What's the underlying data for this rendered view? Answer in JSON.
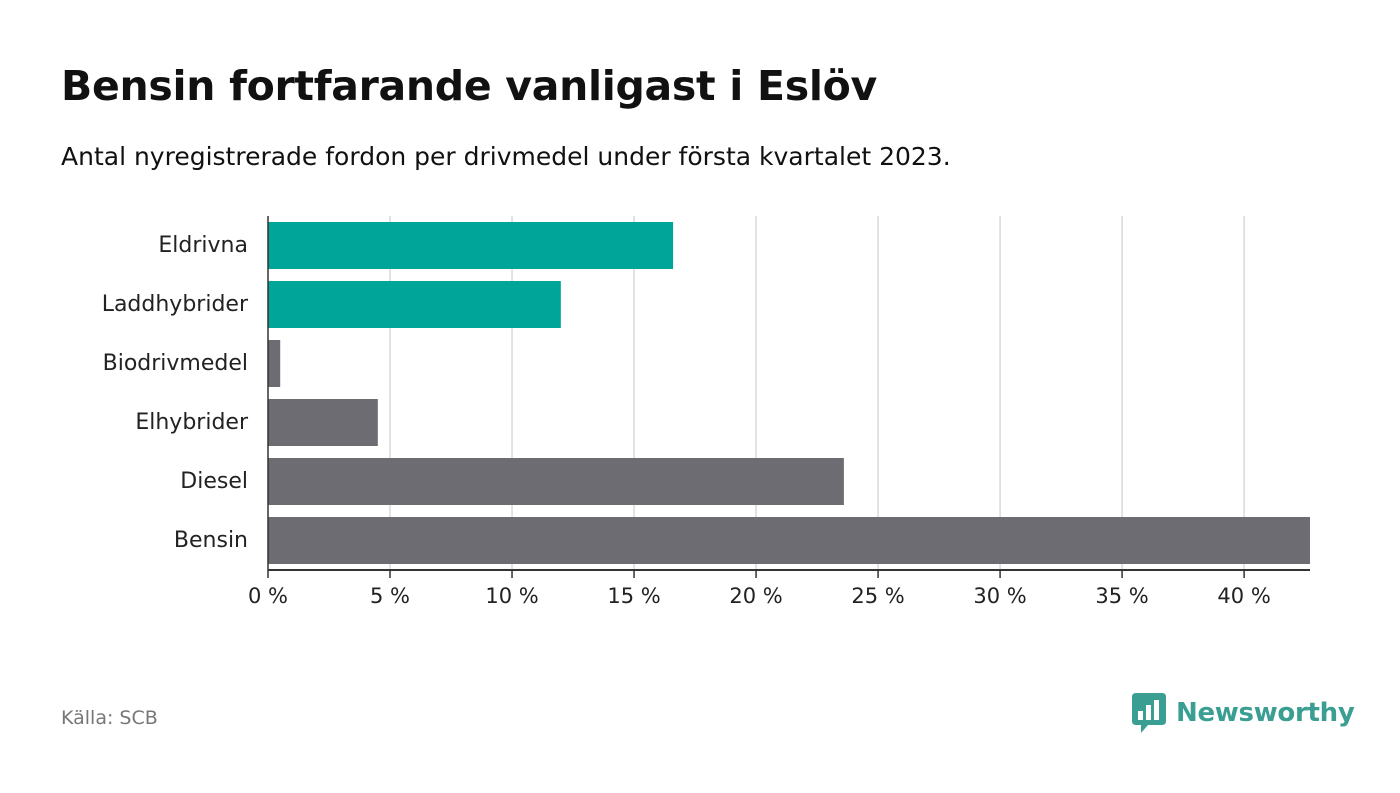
{
  "title": "Bensin fortfarande vanligast i Eslöv",
  "subtitle": "Antal nyregistrerade fordon per drivmedel under första kvartalet 2023.",
  "source": "Källa: SCB",
  "brand": {
    "name": "Newsworthy",
    "color": "#3a9e92",
    "icon": "newsworthy-logo-icon"
  },
  "colors": {
    "highlight": "#00a59a",
    "default": "#6d6c72",
    "grid": "#d9d9d9",
    "axis": "#333333"
  },
  "chart_data": {
    "type": "bar",
    "orientation": "horizontal",
    "categories": [
      "Eldrivna",
      "Laddhybrider",
      "Biodrivmedel",
      "Elhybrider",
      "Diesel",
      "Bensin"
    ],
    "values": [
      16.6,
      12.0,
      0.5,
      4.5,
      23.6,
      42.7
    ],
    "highlighted": [
      "Eldrivna",
      "Laddhybrider"
    ],
    "xlim": [
      0,
      42.7
    ],
    "xticks": [
      0,
      5,
      10,
      15,
      20,
      25,
      30,
      35,
      40
    ],
    "xtick_labels": [
      "0 %",
      "5 %",
      "10 %",
      "15 %",
      "20 %",
      "25 %",
      "30 %",
      "35 %",
      "40 %"
    ],
    "grid": true,
    "legend": "none"
  }
}
